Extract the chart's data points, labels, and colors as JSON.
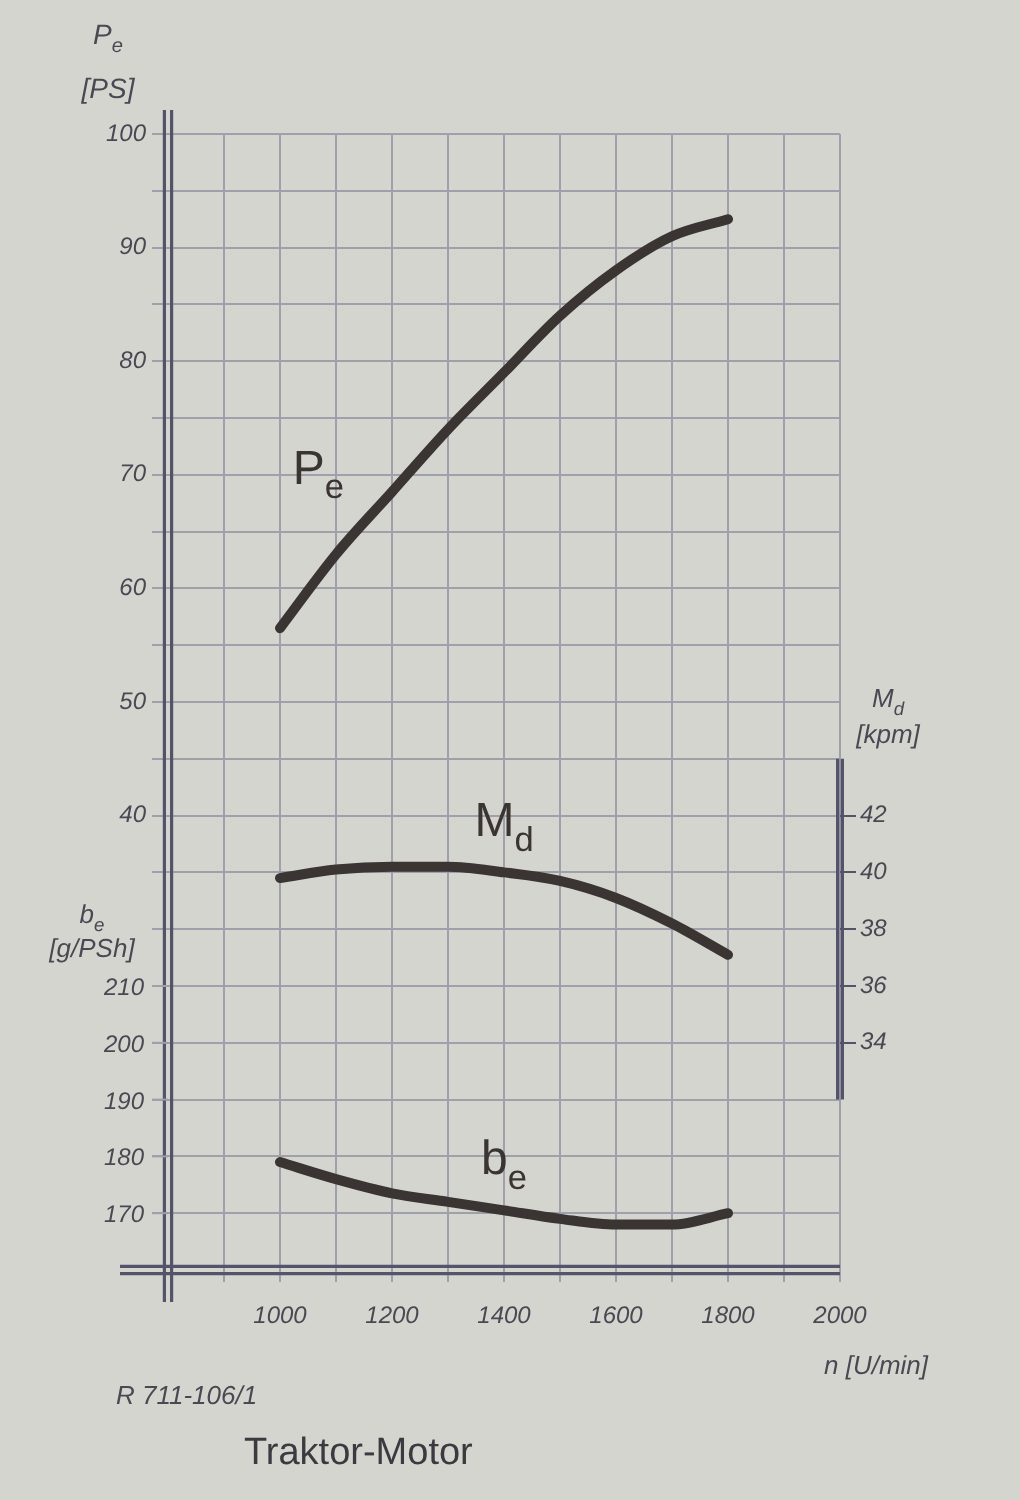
{
  "chart_data": {
    "type": "line",
    "title": "Traktor-Motor",
    "xlabel": "n [U/min]",
    "ylabel": "P$_{e}$ [PS]",
    "y2label": "M$_{d}$ [kpm]",
    "y3label": "b$_{e}$ [g/PSh]",
    "annotations": [
      "R 711-106/1"
    ],
    "x": [
      1000,
      1100,
      1200,
      1300,
      1400,
      1500,
      1600,
      1700,
      1800
    ],
    "series": [
      {
        "name": "P$_{e}$",
        "color": "#3a3532",
        "values": [
          56.5,
          63,
          68.5,
          74,
          79,
          84,
          88,
          91,
          92.5
        ]
      },
      {
        "name": "M$_{d}$",
        "color": "#3a3532",
        "axis": "y2",
        "values": [
          39.8,
          40.1,
          40.2,
          40.2,
          40.0,
          39.7,
          39.1,
          38.2,
          37.1
        ]
      },
      {
        "name": "b$_{e}$",
        "color": "#3a3532",
        "axis": "y3",
        "values": [
          179,
          176,
          173.5,
          172,
          170.5,
          169,
          168,
          168,
          170
        ]
      }
    ],
    "xlim": [
      800,
      2000
    ],
    "xticks": [
      {
        "value": 900,
        "label": null
      },
      1000,
      {
        "value": 1100,
        "label": null
      },
      1200,
      {
        "value": 1300,
        "label": null
      },
      1400,
      {
        "value": 1500,
        "label": null
      },
      1600,
      {
        "value": 1700,
        "label": null
      },
      1800,
      {
        "value": 1900,
        "label": null
      },
      2000
    ],
    "ylim": [
      0,
      100
    ],
    "yticks": [
      {
        "value": 5,
        "label": null
      },
      {
        "value": 10,
        "label": null
      },
      {
        "value": 15,
        "label": null
      },
      {
        "value": 20,
        "label": null
      },
      {
        "value": 25,
        "label": null
      },
      {
        "value": 30,
        "label": null
      },
      {
        "value": 35,
        "label": null
      },
      40,
      {
        "value": 45,
        "label": null
      },
      50,
      {
        "value": 55,
        "label": null
      },
      60,
      {
        "value": 65,
        "label": null
      },
      70,
      {
        "value": 75,
        "label": null
      },
      80,
      {
        "value": 85,
        "label": null
      },
      90,
      {
        "value": 95,
        "label": null
      },
      100
    ],
    "y2lim": [
      26,
      66
    ],
    "y2ticks": [
      34,
      36,
      38,
      40,
      42
    ],
    "y3lim": [
      160,
      360
    ],
    "y3ticks": [
      170,
      180,
      190,
      200,
      210
    ],
    "grid": true,
    "legend": false,
    "marker": "none",
    "line_style": "solid"
  }
}
